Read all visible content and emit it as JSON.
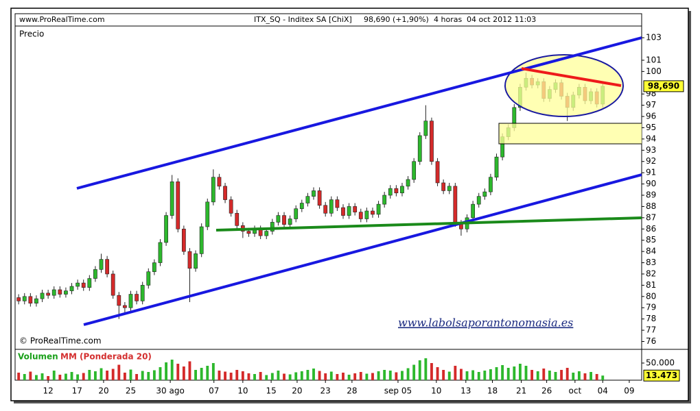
{
  "chart_data": {
    "type": "candlestick",
    "site": "www.ProRealTime.com",
    "title": "ITX_SQ - Inditex SA [ChiX]",
    "price_change": "98,690 (+1,90%)",
    "timeframe": "4 horas",
    "datetime": "04 oct 2012 11:03",
    "price_label": "Precio",
    "copyright": "© ProRealTime.com",
    "watermark": "www.labolsaporantonomasia.es",
    "up_color": "#2db82d",
    "down_color": "#d42a2a",
    "last_price": {
      "value": 98.69,
      "label": "98,690"
    },
    "ylim": [
      75.3,
      104.04
    ],
    "yticks": [
      76,
      77,
      78,
      79,
      80,
      81,
      82,
      83,
      84,
      85,
      86,
      87,
      88,
      89,
      90,
      91,
      92,
      93,
      94,
      95,
      96,
      97,
      98,
      100,
      101,
      103
    ],
    "xlim": [
      -0.6,
      105.6
    ],
    "xticks": [
      {
        "value": 5,
        "label": "12"
      },
      {
        "value": 9.9,
        "label": "17"
      },
      {
        "value": 14.4,
        "label": "20"
      },
      {
        "value": 19,
        "label": "25"
      },
      {
        "value": 25.7,
        "label": "30 ago"
      },
      {
        "value": 33.1,
        "label": "07"
      },
      {
        "value": 38,
        "label": "10"
      },
      {
        "value": 42.8,
        "label": "15"
      },
      {
        "value": 47.2,
        "label": "20"
      },
      {
        "value": 52,
        "label": "23"
      },
      {
        "value": 56.5,
        "label": "28"
      },
      {
        "value": 64.3,
        "label": "sep 05"
      },
      {
        "value": 70.8,
        "label": "10"
      },
      {
        "value": 75.8,
        "label": "13"
      },
      {
        "value": 80.3,
        "label": "18"
      },
      {
        "value": 85.2,
        "label": "21"
      },
      {
        "value": 89.5,
        "label": "26"
      },
      {
        "value": 94.3,
        "label": "oct"
      },
      {
        "value": 99,
        "label": "04"
      },
      {
        "value": 103.5,
        "label": "09"
      }
    ],
    "ohlc": [
      [
        79.9,
        80.2,
        79.3,
        79.6
      ],
      [
        79.6,
        80.3,
        79.3,
        80.0
      ],
      [
        80.0,
        80.3,
        79.1,
        79.4
      ],
      [
        79.4,
        80.1,
        79.1,
        79.8
      ],
      [
        79.8,
        80.6,
        79.5,
        80.3
      ],
      [
        80.3,
        80.6,
        79.8,
        80.1
      ],
      [
        80.1,
        80.9,
        79.8,
        80.6
      ],
      [
        80.6,
        80.9,
        79.9,
        80.2
      ],
      [
        80.2,
        80.8,
        79.9,
        80.5
      ],
      [
        80.5,
        81.2,
        80.2,
        80.9
      ],
      [
        80.9,
        81.5,
        80.6,
        81.2
      ],
      [
        81.2,
        81.5,
        80.5,
        80.8
      ],
      [
        80.8,
        81.9,
        80.5,
        81.6
      ],
      [
        81.6,
        82.7,
        81.3,
        82.4
      ],
      [
        82.4,
        83.8,
        82.1,
        83.3
      ],
      [
        83.3,
        83.6,
        81.7,
        82.0
      ],
      [
        82.0,
        82.3,
        79.8,
        80.1
      ],
      [
        80.1,
        80.4,
        78.0,
        79.2
      ],
      [
        79.2,
        79.5,
        78.4,
        79.0
      ],
      [
        79.0,
        80.5,
        78.7,
        80.2
      ],
      [
        80.2,
        80.5,
        79.3,
        79.6
      ],
      [
        79.6,
        81.3,
        79.3,
        81.0
      ],
      [
        81.0,
        82.5,
        80.7,
        82.2
      ],
      [
        82.2,
        83.3,
        81.9,
        83.0
      ],
      [
        83.0,
        85.1,
        82.7,
        84.8
      ],
      [
        84.8,
        87.5,
        84.5,
        87.2
      ],
      [
        87.2,
        90.8,
        86.9,
        90.2
      ],
      [
        90.2,
        90.5,
        85.7,
        86.0
      ],
      [
        86.0,
        86.3,
        83.7,
        84.0
      ],
      [
        84.0,
        84.3,
        79.5,
        82.5
      ],
      [
        82.5,
        84.1,
        82.2,
        83.8
      ],
      [
        83.8,
        86.5,
        83.5,
        86.2
      ],
      [
        86.2,
        88.7,
        85.9,
        88.4
      ],
      [
        88.4,
        91.3,
        88.1,
        90.6
      ],
      [
        90.6,
        90.9,
        89.5,
        89.8
      ],
      [
        89.8,
        90.1,
        88.3,
        88.6
      ],
      [
        88.6,
        88.9,
        87.1,
        87.4
      ],
      [
        87.4,
        87.7,
        86.0,
        86.3
      ],
      [
        86.3,
        86.6,
        85.2,
        85.8
      ],
      [
        85.8,
        86.1,
        85.3,
        85.6
      ],
      [
        85.6,
        86.3,
        85.3,
        86.0
      ],
      [
        86.0,
        86.3,
        85.1,
        85.4
      ],
      [
        85.4,
        86.1,
        85.1,
        85.8
      ],
      [
        85.8,
        86.9,
        85.5,
        86.6
      ],
      [
        86.6,
        87.5,
        86.3,
        87.2
      ],
      [
        87.2,
        87.5,
        86.1,
        86.4
      ],
      [
        86.4,
        87.2,
        86.1,
        86.9
      ],
      [
        86.9,
        88.1,
        86.6,
        87.8
      ],
      [
        87.8,
        88.6,
        87.5,
        88.3
      ],
      [
        88.3,
        89.2,
        88.0,
        88.9
      ],
      [
        88.9,
        89.7,
        88.6,
        89.4
      ],
      [
        89.4,
        89.7,
        87.8,
        88.1
      ],
      [
        88.1,
        88.4,
        87.1,
        87.4
      ],
      [
        87.4,
        88.9,
        87.1,
        88.6
      ],
      [
        88.6,
        88.9,
        87.6,
        87.9
      ],
      [
        87.9,
        88.2,
        86.9,
        87.2
      ],
      [
        87.2,
        88.3,
        86.9,
        88.0
      ],
      [
        88.0,
        88.3,
        87.2,
        87.5
      ],
      [
        87.5,
        87.8,
        86.6,
        86.9
      ],
      [
        86.9,
        87.9,
        86.6,
        87.6
      ],
      [
        87.6,
        87.9,
        87.0,
        87.3
      ],
      [
        87.3,
        88.5,
        87.0,
        88.2
      ],
      [
        88.2,
        89.3,
        87.9,
        89.0
      ],
      [
        89.0,
        89.9,
        88.7,
        89.6
      ],
      [
        89.6,
        89.9,
        88.9,
        89.2
      ],
      [
        89.2,
        90.1,
        88.9,
        89.8
      ],
      [
        89.8,
        90.7,
        89.5,
        90.4
      ],
      [
        90.4,
        92.3,
        90.1,
        92.0
      ],
      [
        92.0,
        94.6,
        91.7,
        94.3
      ],
      [
        94.3,
        97.0,
        94.0,
        95.6
      ],
      [
        95.6,
        95.9,
        91.7,
        92.0
      ],
      [
        92.0,
        92.3,
        89.8,
        90.1
      ],
      [
        90.1,
        90.4,
        89.1,
        89.4
      ],
      [
        89.4,
        90.1,
        89.1,
        89.8
      ],
      [
        89.8,
        90.1,
        86.2,
        86.5
      ],
      [
        86.5,
        86.8,
        85.4,
        86.0
      ],
      [
        86.0,
        87.3,
        85.7,
        87.0
      ],
      [
        87.0,
        88.5,
        86.7,
        88.2
      ],
      [
        88.2,
        89.2,
        87.9,
        88.9
      ],
      [
        88.9,
        89.6,
        88.6,
        89.3
      ],
      [
        89.3,
        90.9,
        89.0,
        90.6
      ],
      [
        90.6,
        92.7,
        90.3,
        92.4
      ],
      [
        92.4,
        94.5,
        92.1,
        94.2
      ],
      [
        94.2,
        95.3,
        93.9,
        95.0
      ],
      [
        95.0,
        97.1,
        94.7,
        96.8
      ],
      [
        96.8,
        98.9,
        96.5,
        98.6
      ],
      [
        98.6,
        99.9,
        98.3,
        99.4
      ],
      [
        99.4,
        99.7,
        98.5,
        98.8
      ],
      [
        98.8,
        99.4,
        98.5,
        99.1
      ],
      [
        99.1,
        99.4,
        97.3,
        97.6
      ],
      [
        97.6,
        98.7,
        97.3,
        98.4
      ],
      [
        98.4,
        99.3,
        98.1,
        99.0
      ],
      [
        99.0,
        99.3,
        97.5,
        97.8
      ],
      [
        97.8,
        98.1,
        95.6,
        96.8
      ],
      [
        96.8,
        98.2,
        96.5,
        97.9
      ],
      [
        97.9,
        98.9,
        97.6,
        98.6
      ],
      [
        98.6,
        98.9,
        97.1,
        97.4
      ],
      [
        97.4,
        98.5,
        97.1,
        98.2
      ],
      [
        98.2,
        98.5,
        96.8,
        97.1
      ],
      [
        97.1,
        98.9,
        96.8,
        98.69
      ]
    ],
    "volume": {
      "title": "Volumen",
      "indicator": "MM (Ponderada 20)",
      "ylim": [
        0,
        86000
      ],
      "yticks": [
        {
          "value": 50000,
          "label": "50.000"
        }
      ],
      "last_label": "13.473",
      "values": [
        22000,
        18000,
        25000,
        15000,
        20000,
        12000,
        28000,
        16000,
        19000,
        24000,
        17000,
        21000,
        30000,
        26000,
        35000,
        28000,
        33000,
        45000,
        22000,
        31000,
        18000,
        27000,
        24000,
        29000,
        38000,
        52000,
        60000,
        48000,
        40000,
        55000,
        30000,
        36000,
        42000,
        50000,
        28000,
        25000,
        22000,
        30000,
        26000,
        20000,
        18000,
        24000,
        15000,
        21000,
        28000,
        19000,
        17000,
        23000,
        26000,
        30000,
        34000,
        27000,
        20000,
        25000,
        18000,
        22000,
        16000,
        20000,
        24000,
        19000,
        21000,
        26000,
        30000,
        28000,
        23000,
        27000,
        35000,
        45000,
        58000,
        64000,
        50000,
        38000,
        30000,
        25000,
        42000,
        33000,
        26000,
        29000,
        24000,
        28000,
        32000,
        38000,
        44000,
        36000,
        40000,
        48000,
        42000,
        30000,
        26000,
        34000,
        28000,
        24000,
        30000,
        36000,
        22000,
        26000,
        20000,
        24000,
        18000,
        13473
      ]
    }
  }
}
